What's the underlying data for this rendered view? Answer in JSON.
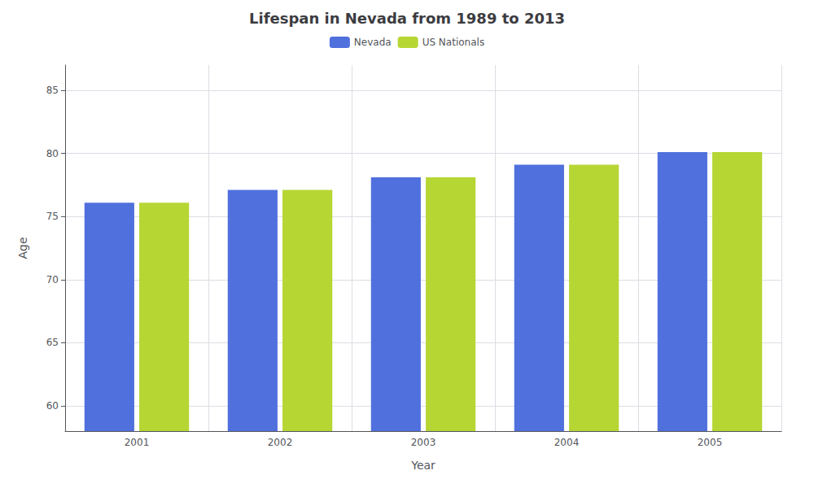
{
  "chart_data": {
    "type": "bar",
    "title": "Lifespan in Nevada from 1989 to 2013",
    "xlabel": "Year",
    "ylabel": "Age",
    "categories": [
      "2001",
      "2002",
      "2003",
      "2004",
      "2005"
    ],
    "series": [
      {
        "name": "Nevada",
        "values": [
          76.1,
          77.1,
          78.1,
          79.1,
          80.1
        ]
      },
      {
        "name": "US Nationals",
        "values": [
          76.1,
          77.1,
          78.1,
          79.1,
          80.1
        ]
      }
    ],
    "ylim": [
      58,
      87
    ],
    "yticks": [
      60,
      65,
      70,
      75,
      80,
      85
    ],
    "grid": true,
    "legend": "top"
  }
}
